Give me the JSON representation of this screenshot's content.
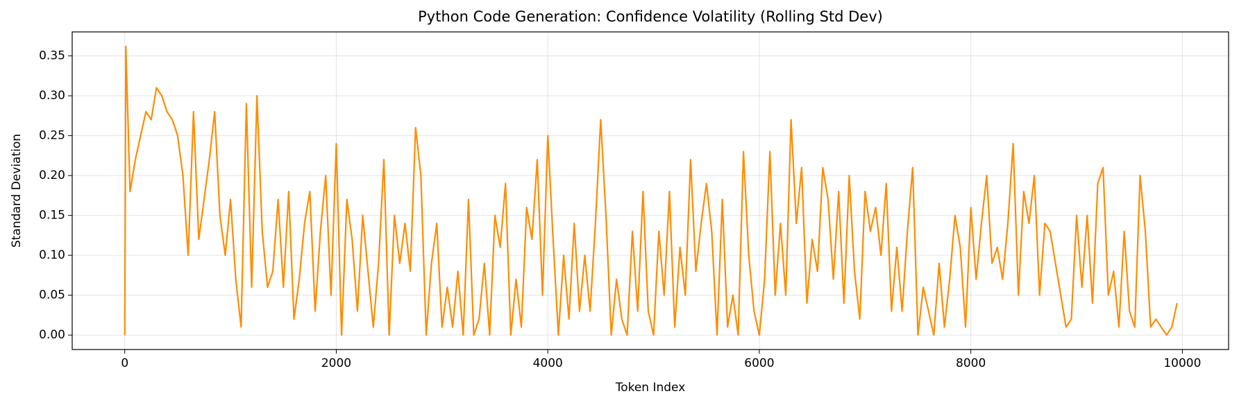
{
  "chart_data": {
    "type": "line",
    "title": "Python Code Generation: Confidence Volatility (Rolling Std Dev)",
    "x_label": "Token Index",
    "y_label": "Standard Deviation",
    "color": "#ff8c00",
    "grid": true,
    "xlim": [
      -497,
      10437
    ],
    "ylim": [
      -0.0181,
      0.3801
    ],
    "xticks": [
      0,
      2000,
      4000,
      6000,
      8000,
      10000
    ],
    "yticks": [
      {
        "value": 0,
        "label": "0.00"
      },
      {
        "value": 0.05,
        "label": "0.05"
      },
      {
        "value": 0.1,
        "label": "0.10"
      },
      {
        "value": 0.15,
        "label": "0.15"
      },
      {
        "value": 0.2,
        "label": "0.20"
      },
      {
        "value": 0.25,
        "label": "0.25"
      },
      {
        "value": 0.3,
        "label": "0.30"
      },
      {
        "value": 0.35,
        "label": "0.35"
      }
    ],
    "x": [
      0,
      10,
      50,
      100,
      150,
      200,
      250,
      300,
      350,
      400,
      450,
      500,
      550,
      600,
      650,
      700,
      750,
      800,
      850,
      900,
      950,
      1000,
      1050,
      1100,
      1150,
      1200,
      1250,
      1300,
      1350,
      1400,
      1450,
      1500,
      1550,
      1600,
      1650,
      1700,
      1750,
      1800,
      1850,
      1900,
      1950,
      2000,
      2050,
      2100,
      2150,
      2200,
      2250,
      2300,
      2350,
      2400,
      2450,
      2500,
      2550,
      2600,
      2650,
      2700,
      2750,
      2800,
      2850,
      2900,
      2950,
      3000,
      3050,
      3100,
      3150,
      3200,
      3250,
      3300,
      3350,
      3400,
      3450,
      3500,
      3550,
      3600,
      3650,
      3700,
      3750,
      3800,
      3850,
      3900,
      3950,
      4000,
      4050,
      4100,
      4150,
      4200,
      4250,
      4300,
      4350,
      4400,
      4450,
      4500,
      4550,
      4600,
      4650,
      4700,
      4750,
      4800,
      4850,
      4900,
      4950,
      5000,
      5050,
      5100,
      5150,
      5200,
      5250,
      5300,
      5350,
      5400,
      5450,
      5500,
      5550,
      5600,
      5650,
      5700,
      5750,
      5800,
      5850,
      5900,
      5950,
      6000,
      6050,
      6100,
      6150,
      6200,
      6250,
      6300,
      6350,
      6400,
      6450,
      6500,
      6550,
      6600,
      6650,
      6700,
      6750,
      6800,
      6850,
      6900,
      6950,
      7000,
      7050,
      7100,
      7150,
      7200,
      7250,
      7300,
      7350,
      7400,
      7450,
      7500,
      7550,
      7600,
      7650,
      7700,
      7750,
      7800,
      7850,
      7900,
      7950,
      8000,
      8050,
      8100,
      8150,
      8200,
      8250,
      8300,
      8350,
      8400,
      8450,
      8500,
      8550,
      8600,
      8650,
      8700,
      8750,
      8800,
      8850,
      8900,
      8950,
      9000,
      9050,
      9100,
      9150,
      9200,
      9250,
      9300,
      9350,
      9400,
      9450,
      9500,
      9550,
      9600,
      9650,
      9700,
      9750,
      9800,
      9850,
      9900,
      9950
    ],
    "values": [
      0,
      0.362,
      0.18,
      0.22,
      0.25,
      0.28,
      0.27,
      0.31,
      0.3,
      0.28,
      0.27,
      0.25,
      0.2,
      0.1,
      0.28,
      0.12,
      0.17,
      0.22,
      0.28,
      0.15,
      0.1,
      0.17,
      0.07,
      0.01,
      0.29,
      0.06,
      0.3,
      0.13,
      0.06,
      0.08,
      0.17,
      0.06,
      0.18,
      0.02,
      0.07,
      0.14,
      0.18,
      0.03,
      0.13,
      0.2,
      0.05,
      0.24,
      0,
      0.17,
      0.12,
      0.03,
      0.15,
      0.08,
      0.01,
      0.09,
      0.22,
      0,
      0.15,
      0.09,
      0.14,
      0.08,
      0.26,
      0.2,
      0,
      0.09,
      0.14,
      0.01,
      0.06,
      0.01,
      0.08,
      0,
      0.17,
      0,
      0.02,
      0.09,
      0,
      0.15,
      0.11,
      0.19,
      0,
      0.07,
      0.01,
      0.16,
      0.12,
      0.22,
      0.05,
      0.25,
      0.12,
      0,
      0.1,
      0.02,
      0.14,
      0.03,
      0.1,
      0.03,
      0.14,
      0.27,
      0.15,
      0,
      0.07,
      0.02,
      0,
      0.13,
      0.03,
      0.18,
      0.03,
      0,
      0.13,
      0.05,
      0.18,
      0.01,
      0.11,
      0.05,
      0.22,
      0.08,
      0.14,
      0.19,
      0.13,
      0,
      0.17,
      0.01,
      0.05,
      0,
      0.23,
      0.1,
      0.03,
      0,
      0.07,
      0.23,
      0.05,
      0.14,
      0.05,
      0.27,
      0.14,
      0.21,
      0.04,
      0.12,
      0.08,
      0.21,
      0.17,
      0.07,
      0.18,
      0.04,
      0.2,
      0.08,
      0.02,
      0.18,
      0.13,
      0.16,
      0.1,
      0.19,
      0.03,
      0.11,
      0.03,
      0.13,
      0.21,
      0,
      0.06,
      0.03,
      0,
      0.09,
      0.01,
      0.07,
      0.15,
      0.11,
      0.01,
      0.16,
      0.07,
      0.14,
      0.2,
      0.09,
      0.11,
      0.07,
      0.14,
      0.24,
      0.05,
      0.18,
      0.14,
      0.2,
      0.05,
      0.14,
      0.13,
      0.09,
      0.05,
      0.01,
      0.02,
      0.15,
      0.06,
      0.15,
      0.04,
      0.19,
      0.21,
      0.05,
      0.08,
      0.01,
      0.13,
      0.03,
      0.01,
      0.2,
      0.13,
      0.01,
      0.02,
      0.01,
      0,
      0.01,
      0.04
    ]
  }
}
